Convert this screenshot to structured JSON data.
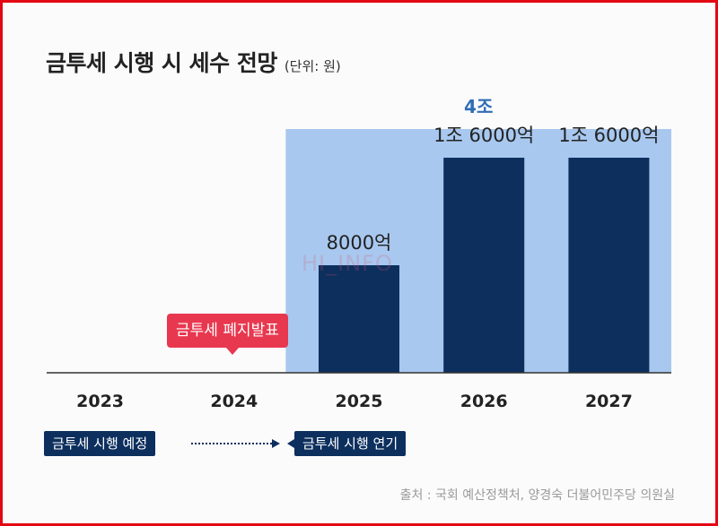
{
  "title": "금투세 시행 시 세수 전망",
  "unit_note": "(단위: 원)",
  "source": "출처 : 국회 예산정책처, 양경숙 더불어민주당 의원실",
  "watermark": "HI_INFO",
  "colors": {
    "border": "#e30613",
    "bar": "#0d2f5e",
    "highlight_band": "#a8c8ef",
    "band_label": "#2f6db5",
    "callout": "#e8384f",
    "tag": "#0d2f5e"
  },
  "annotations": {
    "abolition": "금투세 폐지발표",
    "planned": "금투세 시행 예정",
    "postponed": "금투세 시행 연기"
  },
  "chart_data": {
    "type": "bar",
    "categories": [
      "2023",
      "2024",
      "2025",
      "2026",
      "2027"
    ],
    "values": [
      null,
      null,
      8000,
      16000,
      16000
    ],
    "value_labels": [
      "",
      "",
      "8000억",
      "1조 6000억",
      "1조 6000억"
    ],
    "value_unit": "억 원",
    "ylim": [
      0,
      18000
    ],
    "grid": false,
    "highlight": {
      "from": "2025",
      "to": "2027",
      "label": "4조"
    }
  }
}
